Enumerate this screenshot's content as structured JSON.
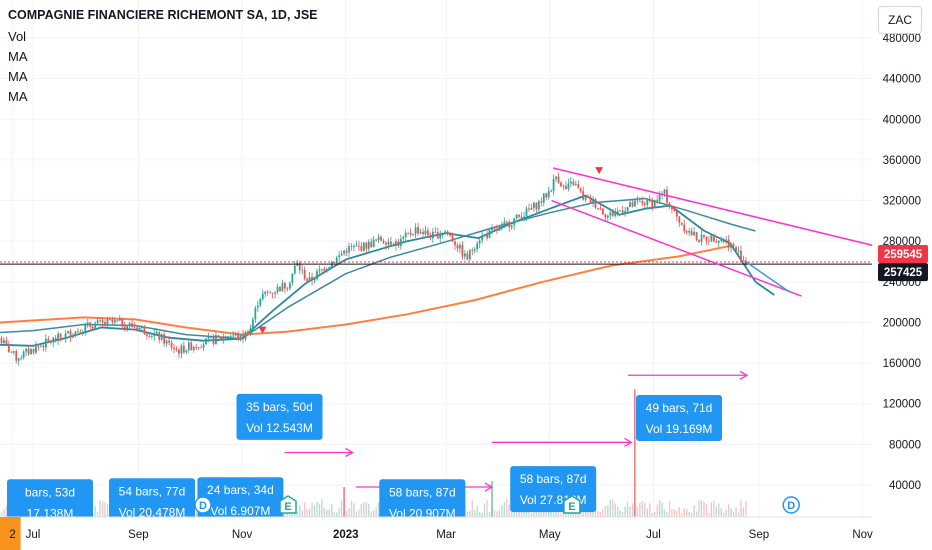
{
  "header": {
    "title": "COMPAGNIE FINANCIERE RICHEMONT SA, 1D, JSE",
    "indicators": [
      "Vol",
      "MA",
      "MA",
      "MA"
    ]
  },
  "currency": "ZAC",
  "chart_data": {
    "type": "candlestick",
    "y_ticks": [
      "480000",
      "440000",
      "400000",
      "360000",
      "320000",
      "280000",
      "240000",
      "200000",
      "160000",
      "120000",
      "80000",
      "40000"
    ],
    "ylim": [
      10000,
      482000
    ],
    "x_ticks": [
      {
        "label": "2",
        "t": -12
      },
      {
        "label": "Jul",
        "t": 0
      },
      {
        "label": "Sep",
        "t": 62
      },
      {
        "label": "Nov",
        "t": 123
      },
      {
        "label": "2023",
        "t": 184
      },
      {
        "label": "Mar",
        "t": 243
      },
      {
        "label": "May",
        "t": 304
      },
      {
        "label": "Jul",
        "t": 365
      },
      {
        "label": "Sep",
        "t": 427
      },
      {
        "label": "Nov",
        "t": 488
      }
    ],
    "price_labels": [
      {
        "value": "259545",
        "price": 259545,
        "color": "#f23645"
      },
      {
        "value": "257425",
        "price": 257425,
        "color": "#131722"
      }
    ],
    "price_anchors": [
      [
        -20,
        185000
      ],
      [
        -10,
        165000
      ],
      [
        5,
        178000
      ],
      [
        20,
        188000
      ],
      [
        35,
        198000
      ],
      [
        50,
        200000
      ],
      [
        62,
        195000
      ],
      [
        75,
        185000
      ],
      [
        85,
        172000
      ],
      [
        95,
        178000
      ],
      [
        105,
        182000
      ],
      [
        115,
        188000
      ],
      [
        123,
        185000
      ],
      [
        128,
        195000
      ],
      [
        133,
        225000
      ],
      [
        140,
        230000
      ],
      [
        150,
        238000
      ],
      [
        155,
        258000
      ],
      [
        162,
        240000
      ],
      [
        170,
        252000
      ],
      [
        180,
        265000
      ],
      [
        184,
        272000
      ],
      [
        195,
        275000
      ],
      [
        205,
        282000
      ],
      [
        215,
        278000
      ],
      [
        225,
        292000
      ],
      [
        235,
        285000
      ],
      [
        243,
        290000
      ],
      [
        250,
        275000
      ],
      [
        255,
        262000
      ],
      [
        262,
        283000
      ],
      [
        272,
        290000
      ],
      [
        282,
        300000
      ],
      [
        290,
        308000
      ],
      [
        298,
        318000
      ],
      [
        304,
        330000
      ],
      [
        308,
        345000
      ],
      [
        313,
        330000
      ],
      [
        318,
        338000
      ],
      [
        324,
        322000
      ],
      [
        330,
        318000
      ],
      [
        338,
        305000
      ],
      [
        345,
        310000
      ],
      [
        352,
        315000
      ],
      [
        358,
        318000
      ],
      [
        365,
        318000
      ],
      [
        371,
        328000
      ],
      [
        378,
        305000
      ],
      [
        385,
        290000
      ],
      [
        392,
        282000
      ],
      [
        400,
        284000
      ],
      [
        408,
        280000
      ],
      [
        415,
        268000
      ],
      [
        420,
        258000
      ]
    ],
    "ma_series": [
      {
        "color": "#2a8a9d",
        "width": 1.8,
        "points": [
          [
            -20,
            178000
          ],
          [
            0,
            177000
          ],
          [
            20,
            185000
          ],
          [
            40,
            195000
          ],
          [
            60,
            193000
          ],
          [
            80,
            185000
          ],
          [
            100,
            182000
          ],
          [
            123,
            184000
          ],
          [
            140,
            210000
          ],
          [
            160,
            238000
          ],
          [
            184,
            262000
          ],
          [
            200,
            270000
          ],
          [
            220,
            280000
          ],
          [
            243,
            288000
          ],
          [
            262,
            283000
          ],
          [
            282,
            298000
          ],
          [
            304,
            312000
          ],
          [
            325,
            325000
          ],
          [
            345,
            306000
          ],
          [
            360,
            312000
          ],
          [
            375,
            315000
          ],
          [
            395,
            290000
          ],
          [
            410,
            278000
          ],
          [
            425,
            240000
          ],
          [
            436,
            227000
          ]
        ]
      },
      {
        "color": "#3d8aa0",
        "width": 1.5,
        "points": [
          [
            -20,
            190000
          ],
          [
            0,
            192000
          ],
          [
            30,
            198000
          ],
          [
            60,
            197000
          ],
          [
            90,
            188000
          ],
          [
            123,
            184000
          ],
          [
            150,
            215000
          ],
          [
            184,
            248000
          ],
          [
            210,
            264000
          ],
          [
            240,
            278000
          ],
          [
            270,
            293000
          ],
          [
            304,
            308000
          ],
          [
            330,
            318000
          ],
          [
            360,
            322000
          ],
          [
            385,
            310000
          ],
          [
            410,
            297000
          ],
          [
            425,
            290000
          ]
        ]
      },
      {
        "color": "#ff7f3f",
        "width": 2,
        "points": [
          [
            -20,
            200000
          ],
          [
            30,
            205000
          ],
          [
            60,
            203000
          ],
          [
            90,
            195000
          ],
          [
            123,
            188000
          ],
          [
            150,
            191000
          ],
          [
            184,
            198000
          ],
          [
            220,
            208000
          ],
          [
            260,
            222000
          ],
          [
            300,
            240000
          ],
          [
            340,
            256000
          ],
          [
            380,
            265000
          ],
          [
            412,
            276000
          ]
        ]
      }
    ],
    "trend_lines": [
      {
        "color": "#ff33cc",
        "points": [
          [
            306,
            352000
          ],
          [
            506,
            271000
          ]
        ]
      },
      {
        "color": "#ff33cc",
        "points": [
          [
            305,
            320000
          ],
          [
            452,
            226000
          ]
        ]
      },
      {
        "color": "#3d9ccc",
        "points": [
          [
            420,
            259000
          ],
          [
            445,
            230000
          ]
        ]
      }
    ],
    "h_lines": [
      {
        "color": "#f23645",
        "price": 259545,
        "dash": "2,2"
      },
      {
        "color": "#131722",
        "price": 257425,
        "dash": ""
      }
    ],
    "signals": [
      {
        "t": 135,
        "price": 192000,
        "color": "#f23645"
      },
      {
        "t": 333,
        "price": 349000,
        "color": "#f23645"
      }
    ],
    "measures": [
      {
        "bars": "35 bars, 50d",
        "vol": "Vol 12.543M",
        "t": 145,
        "price": 107000,
        "arrow_t0": 148,
        "arrow_t1": 188,
        "arrow_price": 72000
      },
      {
        "bars": "49 bars, 71d",
        "vol": "Vol 19.169M",
        "t": 380,
        "price": 106000,
        "arrow_t0": 350,
        "arrow_t1": 420,
        "arrow_price": 148000
      },
      {
        "bars": "58 bars, 87d",
        "vol": "Vol 20.907M",
        "t": 229,
        "price": 23000,
        "arrow_t0": 190,
        "arrow_t1": 270,
        "arrow_price": 38000
      },
      {
        "bars": "58 bars, 87d",
        "vol": "Vol 27.813M",
        "t": 306,
        "price": 36000,
        "arrow_t0": 270,
        "arrow_t1": 352,
        "arrow_price": 82000
      },
      {
        "bars": "54 bars, 77d",
        "vol": "Vol 20.478M",
        "t": 70,
        "price": 24000,
        "arrow_t0": null,
        "arrow_t1": null,
        "arrow_price": null
      },
      {
        "bars": "24 bars, 34d",
        "vol": "Vol 6.907M",
        "t": 122,
        "price": 25000,
        "arrow_t0": null,
        "arrow_t1": null,
        "arrow_price": null
      },
      {
        "bars": "bars, 53d",
        "vol": "17.138M",
        "t": 10,
        "price": 23000,
        "arrow_t0": null,
        "arrow_t1": null,
        "arrow_price": null
      }
    ],
    "events": [
      {
        "letter": "D",
        "type": "dividend",
        "t": 100
      },
      {
        "letter": "E",
        "type": "earnings",
        "t": 150
      },
      {
        "letter": "E",
        "type": "earnings",
        "t": 317
      },
      {
        "letter": "D",
        "type": "dividend",
        "t": 446
      },
      {
        "letter": "E",
        "type": "earnings",
        "t": 502
      }
    ],
    "volume_spikes": [
      {
        "t": 354,
        "price": 134000,
        "color": "#f77c80"
      },
      {
        "t": 270,
        "price": 44000,
        "color": "#7cc4b4"
      },
      {
        "t": 183,
        "price": 38000,
        "color": "#f77c80"
      }
    ]
  }
}
